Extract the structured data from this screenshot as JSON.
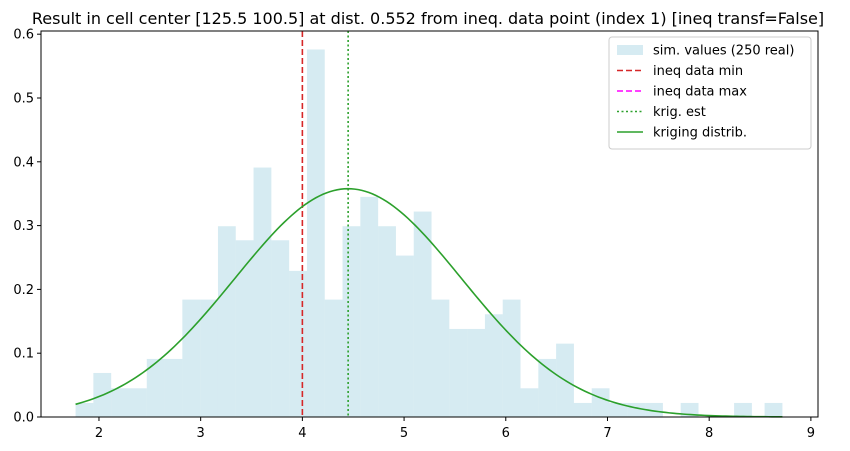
{
  "chart_data": {
    "type": "bar",
    "title": "Result in cell center [125.5 100.5] at dist. 0.552 from ineq. data point (index 1) [ineq transf=False]",
    "xlabel": "",
    "ylabel": "",
    "xlim": [
      1.43,
      9.07
    ],
    "ylim": [
      0,
      0.605
    ],
    "xticks": [
      2,
      3,
      4,
      5,
      6,
      7,
      8,
      9
    ],
    "yticks": [
      0.0,
      0.1,
      0.2,
      0.3,
      0.4,
      0.5,
      0.6
    ],
    "legend_position": "top-right",
    "histogram": {
      "name": "sim. values (250 real)",
      "color": "#add8e6",
      "alpha": 0.5,
      "bins": [
        [
          1.77,
          1.945,
          0.022
        ],
        [
          1.945,
          2.12,
          0.069
        ],
        [
          2.12,
          2.295,
          0.045
        ],
        [
          2.295,
          2.47,
          0.045
        ],
        [
          2.47,
          2.645,
          0.091
        ],
        [
          2.645,
          2.82,
          0.091
        ],
        [
          2.82,
          2.995,
          0.184
        ],
        [
          2.995,
          3.17,
          0.184
        ],
        [
          3.17,
          3.345,
          0.299
        ],
        [
          3.345,
          3.52,
          0.277
        ],
        [
          3.52,
          3.695,
          0.391
        ],
        [
          3.695,
          3.87,
          0.277
        ],
        [
          3.87,
          4.045,
          0.229
        ],
        [
          4.045,
          4.22,
          0.576
        ],
        [
          4.22,
          4.395,
          0.184
        ],
        [
          4.395,
          4.57,
          0.299
        ],
        [
          4.57,
          4.745,
          0.345
        ],
        [
          4.745,
          4.92,
          0.299
        ],
        [
          4.92,
          5.095,
          0.253
        ],
        [
          5.095,
          5.27,
          0.322
        ],
        [
          5.27,
          5.445,
          0.184
        ],
        [
          5.445,
          5.62,
          0.138
        ],
        [
          5.62,
          5.795,
          0.138
        ],
        [
          5.795,
          5.97,
          0.161
        ],
        [
          5.97,
          6.145,
          0.184
        ],
        [
          6.145,
          6.32,
          0.045
        ],
        [
          6.32,
          6.495,
          0.091
        ],
        [
          6.495,
          6.67,
          0.115
        ],
        [
          6.67,
          6.845,
          0.022
        ],
        [
          6.845,
          7.02,
          0.045
        ],
        [
          7.02,
          7.195,
          0.022
        ],
        [
          7.195,
          7.37,
          0.022
        ],
        [
          7.37,
          7.545,
          0.022
        ],
        [
          7.545,
          7.72,
          0.0
        ],
        [
          7.72,
          7.895,
          0.022
        ],
        [
          7.895,
          8.07,
          0.0
        ],
        [
          8.07,
          8.245,
          0.0
        ],
        [
          8.245,
          8.42,
          0.022
        ],
        [
          8.42,
          8.545,
          0.0
        ],
        [
          8.545,
          8.72,
          0.022
        ]
      ]
    },
    "vlines": [
      {
        "name": "ineq data min",
        "x": 4.0,
        "color": "#d62728",
        "style": "dashed",
        "draw": true
      },
      {
        "name": "ineq data max",
        "x": 4.0,
        "color": "#ff00ff",
        "style": "dashed",
        "draw": false
      },
      {
        "name": "krig. est",
        "x": 4.45,
        "color": "#2ca02c",
        "style": "dotted",
        "draw": true
      }
    ],
    "curve": {
      "name": "kriging distrib.",
      "color": "#2ca02c",
      "mean": 4.45,
      "std": 1.115,
      "x_range": [
        1.77,
        8.72
      ]
    }
  }
}
